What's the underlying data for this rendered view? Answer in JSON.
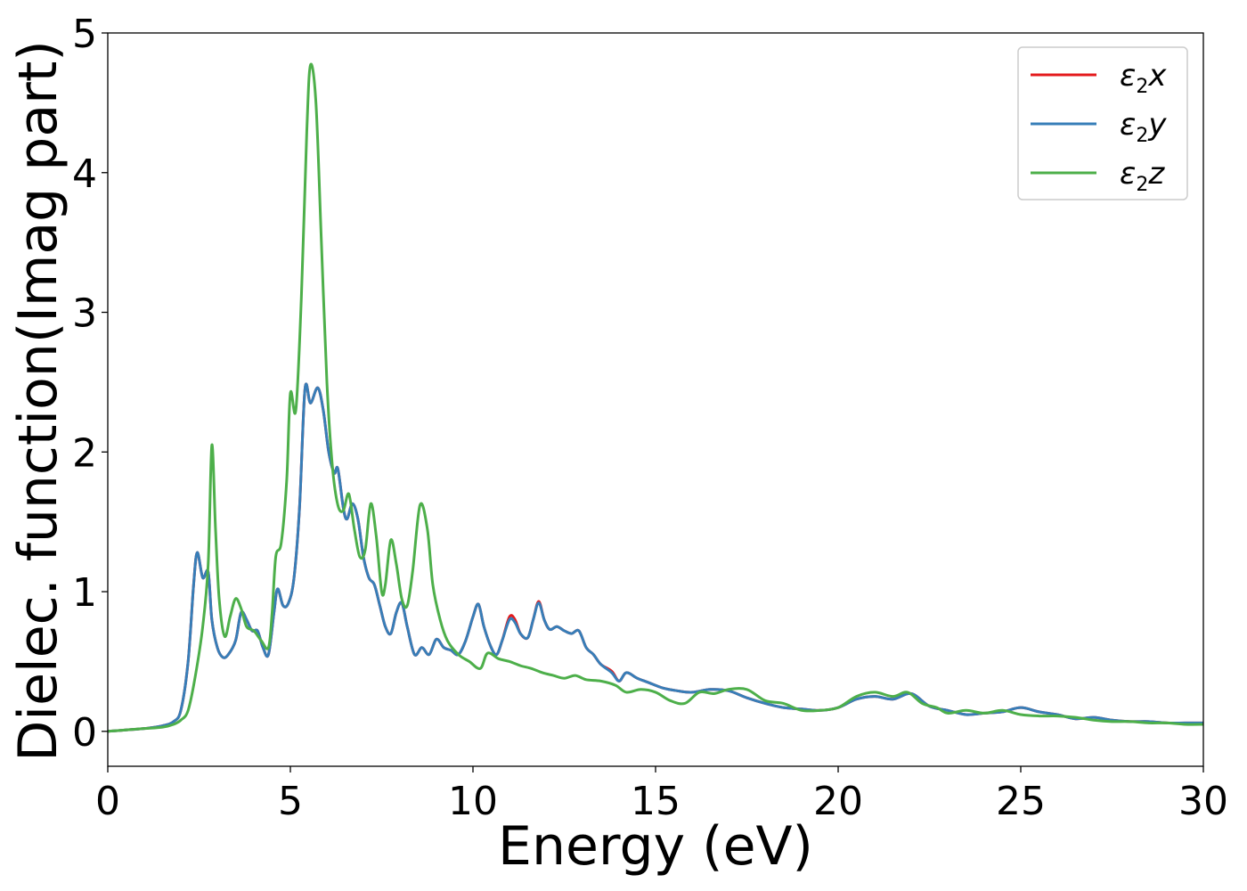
{
  "chart_data": {
    "type": "line",
    "title": "",
    "xlabel": "Energy (eV)",
    "ylabel": "Dielec. function(Imag part)",
    "xlim": [
      0,
      30
    ],
    "ylim": [
      -0.25,
      5
    ],
    "xticks": [
      0,
      5,
      10,
      15,
      20,
      25,
      30
    ],
    "yticks": [
      0,
      1,
      2,
      3,
      4,
      5
    ],
    "xtick_labels": [
      "0",
      "5",
      "10",
      "15",
      "20",
      "25",
      "30"
    ],
    "ytick_labels": [
      "0",
      "1",
      "2",
      "3",
      "4",
      "5"
    ],
    "grid": false,
    "legend_position": "top-right",
    "series": [
      {
        "name_prefix": "ε",
        "name_sub": "2",
        "name_suffix": "x",
        "color": "#e41a1c",
        "x": [
          0,
          0.5,
          1.0,
          1.5,
          1.8,
          2.0,
          2.2,
          2.35,
          2.45,
          2.6,
          2.75,
          2.85,
          3.0,
          3.15,
          3.3,
          3.5,
          3.65,
          3.8,
          3.95,
          4.1,
          4.25,
          4.4,
          4.55,
          4.65,
          4.8,
          4.95,
          5.1,
          5.25,
          5.4,
          5.55,
          5.75,
          5.9,
          6.05,
          6.2,
          6.3,
          6.45,
          6.55,
          6.7,
          6.85,
          7.0,
          7.15,
          7.3,
          7.45,
          7.6,
          7.75,
          7.9,
          8.05,
          8.2,
          8.4,
          8.6,
          8.8,
          9.0,
          9.2,
          9.4,
          9.6,
          9.8,
          10.0,
          10.15,
          10.3,
          10.5,
          10.65,
          10.8,
          11.0,
          11.15,
          11.3,
          11.5,
          11.65,
          11.8,
          11.95,
          12.1,
          12.3,
          12.5,
          12.7,
          12.9,
          13.1,
          13.3,
          13.5,
          13.8,
          14.0,
          14.2,
          14.5,
          14.8,
          15.2,
          15.6,
          16.0,
          16.5,
          17.0,
          17.5,
          18.0,
          18.5,
          19.0,
          19.5,
          20.0,
          20.5,
          21.0,
          21.5,
          22.0,
          22.5,
          23.0,
          23.5,
          24.0,
          24.5,
          25.0,
          25.5,
          26.0,
          26.5,
          27.0,
          27.5,
          28.0,
          28.5,
          29.0,
          29.5,
          30.0
        ],
        "y": [
          0.0,
          0.01,
          0.02,
          0.04,
          0.07,
          0.15,
          0.5,
          1.05,
          1.28,
          1.1,
          1.14,
          0.8,
          0.6,
          0.53,
          0.55,
          0.65,
          0.85,
          0.8,
          0.72,
          0.72,
          0.6,
          0.55,
          0.85,
          1.02,
          0.9,
          0.92,
          1.1,
          1.6,
          2.45,
          2.35,
          2.46,
          2.3,
          2.0,
          1.85,
          1.88,
          1.6,
          1.52,
          1.63,
          1.52,
          1.25,
          1.1,
          1.05,
          0.9,
          0.75,
          0.7,
          0.85,
          0.92,
          0.75,
          0.55,
          0.6,
          0.55,
          0.66,
          0.6,
          0.58,
          0.55,
          0.65,
          0.82,
          0.91,
          0.75,
          0.6,
          0.55,
          0.65,
          0.82,
          0.8,
          0.7,
          0.67,
          0.8,
          0.93,
          0.8,
          0.73,
          0.75,
          0.72,
          0.7,
          0.72,
          0.6,
          0.55,
          0.48,
          0.43,
          0.36,
          0.42,
          0.38,
          0.35,
          0.31,
          0.29,
          0.28,
          0.3,
          0.29,
          0.24,
          0.2,
          0.17,
          0.16,
          0.15,
          0.17,
          0.23,
          0.25,
          0.23,
          0.27,
          0.18,
          0.15,
          0.12,
          0.13,
          0.14,
          0.17,
          0.14,
          0.12,
          0.09,
          0.1,
          0.08,
          0.07,
          0.07,
          0.06,
          0.06,
          0.06
        ]
      },
      {
        "name_prefix": "ε",
        "name_sub": "2",
        "name_suffix": "y",
        "color": "#377eb8",
        "x": [
          0,
          0.5,
          1.0,
          1.5,
          1.8,
          2.0,
          2.2,
          2.35,
          2.45,
          2.6,
          2.75,
          2.85,
          3.0,
          3.15,
          3.3,
          3.5,
          3.65,
          3.8,
          3.95,
          4.1,
          4.25,
          4.4,
          4.55,
          4.65,
          4.8,
          4.95,
          5.1,
          5.25,
          5.4,
          5.55,
          5.75,
          5.9,
          6.05,
          6.2,
          6.3,
          6.45,
          6.55,
          6.7,
          6.85,
          7.0,
          7.15,
          7.3,
          7.45,
          7.6,
          7.75,
          7.9,
          8.05,
          8.2,
          8.4,
          8.6,
          8.8,
          9.0,
          9.2,
          9.4,
          9.6,
          9.8,
          10.0,
          10.15,
          10.3,
          10.5,
          10.65,
          10.8,
          11.0,
          11.15,
          11.3,
          11.5,
          11.65,
          11.8,
          11.95,
          12.1,
          12.3,
          12.5,
          12.7,
          12.9,
          13.1,
          13.3,
          13.5,
          13.8,
          14.0,
          14.2,
          14.5,
          14.8,
          15.2,
          15.6,
          16.0,
          16.5,
          17.0,
          17.5,
          18.0,
          18.5,
          19.0,
          19.5,
          20.0,
          20.5,
          21.0,
          21.5,
          22.0,
          22.5,
          23.0,
          23.5,
          24.0,
          24.5,
          25.0,
          25.5,
          26.0,
          26.5,
          27.0,
          27.5,
          28.0,
          28.5,
          29.0,
          29.5,
          30.0
        ],
        "y": [
          0.0,
          0.01,
          0.02,
          0.04,
          0.07,
          0.15,
          0.5,
          1.05,
          1.28,
          1.1,
          1.14,
          0.8,
          0.6,
          0.53,
          0.55,
          0.65,
          0.85,
          0.8,
          0.72,
          0.72,
          0.6,
          0.55,
          0.85,
          1.02,
          0.9,
          0.92,
          1.1,
          1.6,
          2.45,
          2.35,
          2.46,
          2.3,
          2.0,
          1.85,
          1.88,
          1.6,
          1.52,
          1.63,
          1.52,
          1.25,
          1.1,
          1.05,
          0.9,
          0.75,
          0.7,
          0.85,
          0.92,
          0.75,
          0.55,
          0.6,
          0.55,
          0.66,
          0.6,
          0.58,
          0.55,
          0.65,
          0.82,
          0.91,
          0.75,
          0.6,
          0.55,
          0.65,
          0.8,
          0.78,
          0.7,
          0.67,
          0.8,
          0.92,
          0.8,
          0.73,
          0.75,
          0.72,
          0.7,
          0.72,
          0.6,
          0.55,
          0.48,
          0.42,
          0.36,
          0.42,
          0.38,
          0.35,
          0.31,
          0.29,
          0.28,
          0.3,
          0.29,
          0.24,
          0.2,
          0.17,
          0.16,
          0.15,
          0.17,
          0.23,
          0.25,
          0.23,
          0.27,
          0.18,
          0.15,
          0.12,
          0.13,
          0.14,
          0.17,
          0.14,
          0.12,
          0.09,
          0.1,
          0.08,
          0.07,
          0.07,
          0.06,
          0.06,
          0.06
        ]
      },
      {
        "name_prefix": "ε",
        "name_sub": "2",
        "name_suffix": "z",
        "color": "#4daf4a",
        "x": [
          0,
          0.5,
          1.0,
          1.5,
          1.8,
          2.0,
          2.2,
          2.4,
          2.6,
          2.75,
          2.85,
          2.95,
          3.05,
          3.2,
          3.35,
          3.5,
          3.65,
          3.8,
          4.0,
          4.2,
          4.4,
          4.5,
          4.6,
          4.75,
          4.9,
          5.0,
          5.15,
          5.3,
          5.45,
          5.55,
          5.7,
          5.85,
          6.0,
          6.15,
          6.3,
          6.45,
          6.6,
          6.75,
          6.9,
          7.05,
          7.2,
          7.35,
          7.5,
          7.6,
          7.75,
          7.9,
          8.05,
          8.2,
          8.35,
          8.55,
          8.75,
          8.9,
          9.1,
          9.3,
          9.6,
          9.9,
          10.2,
          10.4,
          10.7,
          11.0,
          11.3,
          11.6,
          11.9,
          12.2,
          12.5,
          12.8,
          13.1,
          13.5,
          13.9,
          14.2,
          14.6,
          15.0,
          15.4,
          15.8,
          16.2,
          16.6,
          17.0,
          17.5,
          18.0,
          18.5,
          19.0,
          19.5,
          20.0,
          20.5,
          21.0,
          21.5,
          21.9,
          22.3,
          22.7,
          23.0,
          23.5,
          24.0,
          24.5,
          25.0,
          25.5,
          26.0,
          26.5,
          27.0,
          27.5,
          28.0,
          28.5,
          29.0,
          29.5,
          30.0
        ],
        "y": [
          0.0,
          0.01,
          0.02,
          0.03,
          0.05,
          0.08,
          0.15,
          0.4,
          0.75,
          1.2,
          2.05,
          1.45,
          0.95,
          0.68,
          0.82,
          0.95,
          0.88,
          0.75,
          0.72,
          0.65,
          0.6,
          0.85,
          1.25,
          1.35,
          1.8,
          2.42,
          2.3,
          3.1,
          4.3,
          4.77,
          4.5,
          3.5,
          2.5,
          1.9,
          1.62,
          1.58,
          1.7,
          1.45,
          1.25,
          1.3,
          1.63,
          1.4,
          1.0,
          1.05,
          1.37,
          1.2,
          0.95,
          0.9,
          1.15,
          1.62,
          1.45,
          1.05,
          0.8,
          0.65,
          0.55,
          0.5,
          0.45,
          0.56,
          0.52,
          0.5,
          0.47,
          0.45,
          0.42,
          0.4,
          0.38,
          0.4,
          0.37,
          0.36,
          0.33,
          0.28,
          0.3,
          0.28,
          0.22,
          0.2,
          0.28,
          0.27,
          0.3,
          0.3,
          0.22,
          0.2,
          0.15,
          0.15,
          0.17,
          0.25,
          0.28,
          0.25,
          0.28,
          0.2,
          0.17,
          0.13,
          0.15,
          0.13,
          0.15,
          0.12,
          0.11,
          0.11,
          0.1,
          0.08,
          0.07,
          0.07,
          0.06,
          0.06,
          0.05,
          0.05
        ]
      }
    ]
  }
}
